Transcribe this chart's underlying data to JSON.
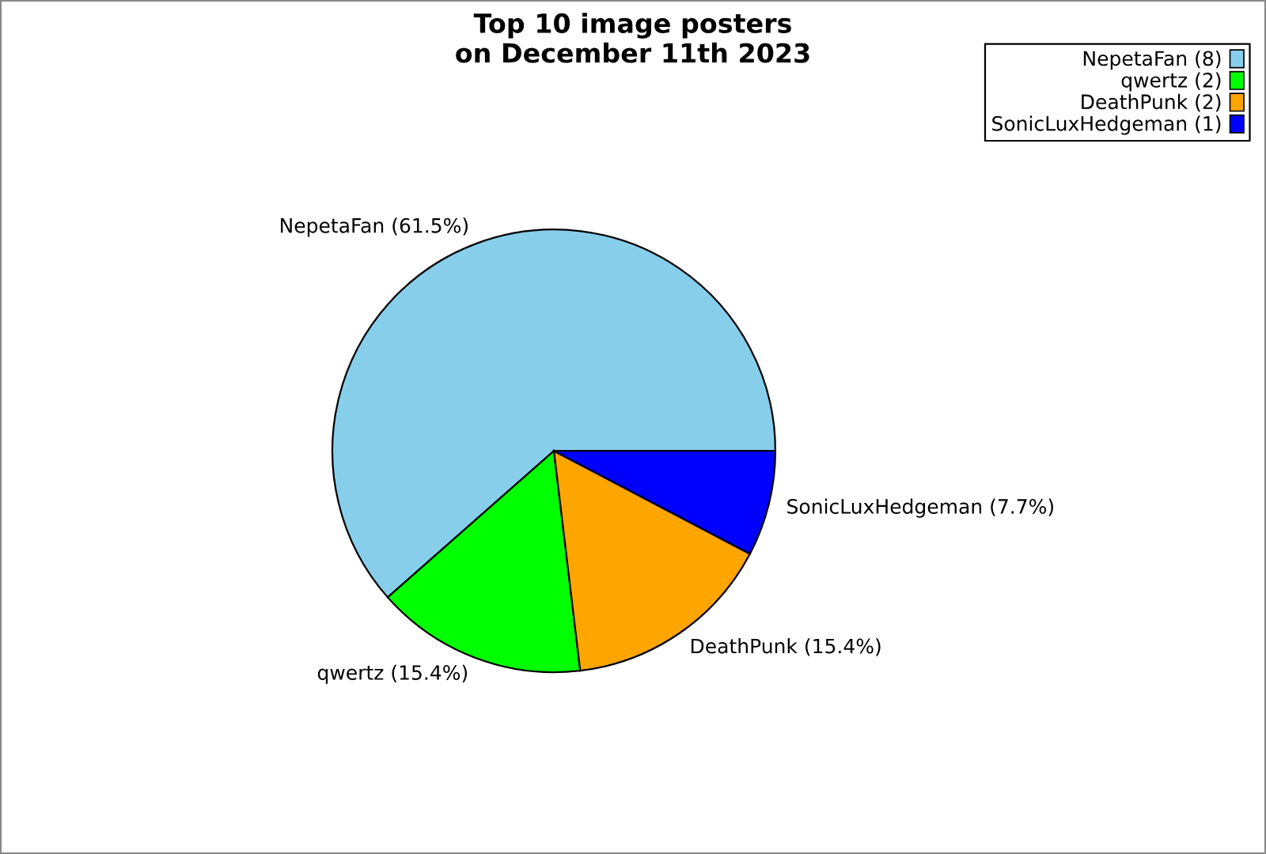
{
  "chart_data": {
    "type": "pie",
    "title": "Top 10 image posters\non December 11th 2023",
    "categories": [
      "NepetaFan (8)",
      "qwertz (2)",
      "DeathPunk (2)",
      "SonicLuxHedgeman (1)"
    ],
    "values": [
      61.5,
      15.4,
      15.4,
      7.7
    ],
    "value_labels": [
      "NepetaFan (61.5%)",
      "qwertz (15.4%)",
      "DeathPunk (15.4%)",
      "SonicLuxHedgeman (7.7%)"
    ],
    "colors": [
      "#87ceeb",
      "#00ff00",
      "#ffa500",
      "#0000ff"
    ],
    "legend": "top right"
  }
}
